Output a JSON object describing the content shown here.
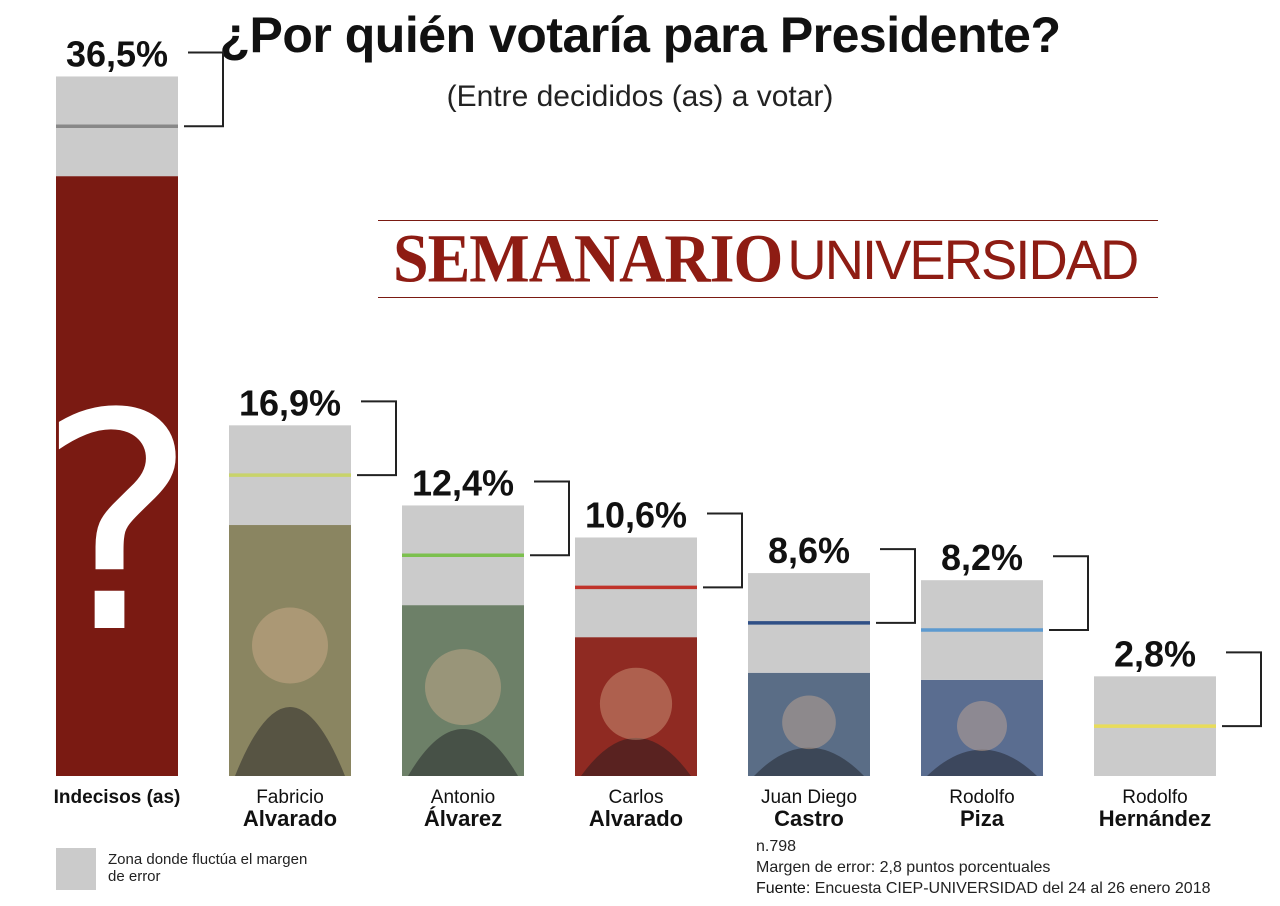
{
  "title": "¿Por quién votaría para Presidente?",
  "subtitle": "(Entre decididos (as) a votar)",
  "logo": {
    "part1": "SEMANARIO",
    "part2": "UNIVERSIDAD"
  },
  "chart_data": {
    "type": "bar",
    "title": "¿Por quién votaría para Presidente?",
    "subtitle": "(Entre decididos (as) a votar)",
    "ylim": [
      0,
      40
    ],
    "error_margin": 2.8,
    "bars": [
      {
        "first": "Indecisos (as)",
        "last": "",
        "value": 36.5,
        "label": "36,5%",
        "color": "#7a1a12",
        "line_color": "#888888",
        "icon": "question-mark-icon"
      },
      {
        "first": "Fabricio",
        "last": "Alvarado",
        "value": 16.9,
        "label": "16,9%",
        "color": "#8a8561",
        "line_color": "#c8d36a",
        "icon": "portrait-icon"
      },
      {
        "first": "Antonio",
        "last": "Álvarez",
        "value": 12.4,
        "label": "12,4%",
        "color": "#6d8068",
        "line_color": "#7cc04e",
        "icon": "portrait-icon"
      },
      {
        "first": "Carlos",
        "last": "Alvarado",
        "value": 10.6,
        "label": "10,6%",
        "color": "#8f2a22",
        "line_color": "#c0332a",
        "icon": "portrait-icon"
      },
      {
        "first": "Juan Diego",
        "last": "Castro",
        "value": 8.6,
        "label": "8,6%",
        "color": "#5a6d86",
        "line_color": "#2f4f86",
        "icon": "portrait-icon"
      },
      {
        "first": "Rodolfo",
        "last": "Piza",
        "value": 8.2,
        "label": "8,2%",
        "color": "#5a6d90",
        "line_color": "#5c9ad0",
        "icon": "portrait-icon"
      },
      {
        "first": "Rodolfo",
        "last": "Hernández",
        "value": 2.8,
        "label": "2,8%",
        "color": "#c8c8c8",
        "line_color": "#e8dc5a",
        "icon": "portrait-icon"
      }
    ]
  },
  "legend": {
    "text": "Zona donde fluctúa el margen de error",
    "color": "#cbcbcb"
  },
  "notes": {
    "sample": "n.798",
    "margin": "Margen de error: 2,8 puntos porcentuales",
    "source_label": "Fuente:",
    "source": "Encuesta CIEP-UNIVERSIDAD del 24 al 26 enero 2018"
  }
}
